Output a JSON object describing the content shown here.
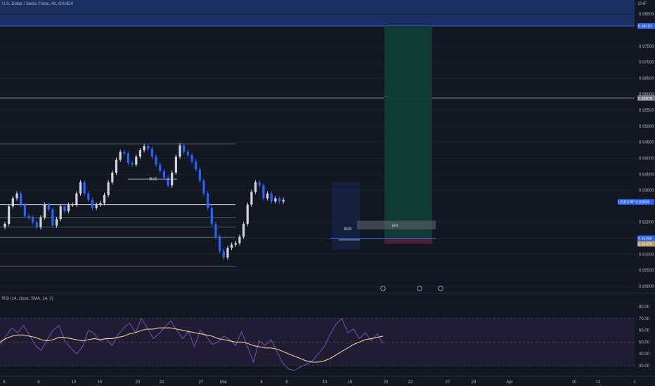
{
  "header": {
    "symbol_title": "U.S. Dollar / Swiss Franc, 4h, OANDA",
    "currency": "CHF"
  },
  "colors": {
    "background": "#131722",
    "bull": "#d1d4dc",
    "bear": "#2962ff",
    "target_zone": "#0f3d35",
    "stop_zone": "#4a1f3a",
    "top_band": "#1e3a7a",
    "rsi_line": "#7e57c2",
    "rsi_ma": "#e8d48a",
    "rsi_band": "#221d35"
  },
  "chart_data": [
    {
      "type": "candlestick",
      "title": "U.S. Dollar / Swiss Franc, 4h, OANDA",
      "ylim": [
        0.8975,
        0.9865
      ],
      "price_ticks": [
        "0.98500",
        "0.97500",
        "0.97000",
        "0.96500",
        "0.96000",
        "0.95500",
        "0.95000",
        "0.94500",
        "0.94000",
        "0.93500",
        "0.93000",
        "0.92000",
        "0.91500",
        "0.91000",
        "0.90500",
        "0.90000"
      ],
      "x_ticks": [
        "6",
        "8",
        "13",
        "15",
        "20",
        "22",
        "27",
        "Mar",
        "6",
        "8",
        "13",
        "15",
        "20",
        "22",
        "27",
        "29",
        "Apr",
        "10",
        "12",
        "1"
      ],
      "price_labels": [
        {
          "text": "0.98131",
          "value": 0.98131,
          "style": "blue"
        },
        {
          "text": "0.95878",
          "value": 0.95878,
          "style": "gray"
        },
        {
          "text": "USDCHF  0.92636",
          "value": 0.92636,
          "style": "blue"
        },
        {
          "text": "0.91500",
          "value": 0.915,
          "style": "blue"
        },
        {
          "text": "0.91329",
          "value": 0.91329,
          "style": "tan"
        }
      ],
      "annotations": [
        "BoS",
        "BoS",
        "IRR"
      ],
      "key_levels": [
        0.95878,
        0.9445,
        0.9255,
        0.9215,
        0.9185,
        0.9153,
        0.9063
      ],
      "close_path": [
        0.9195,
        0.925,
        0.9275,
        0.929,
        0.9255,
        0.922,
        0.9215,
        0.92,
        0.9185,
        0.9215,
        0.9255,
        0.924,
        0.919,
        0.921,
        0.925,
        0.9235,
        0.9255,
        0.9255,
        0.929,
        0.9325,
        0.929,
        0.927,
        0.9245,
        0.9255,
        0.926,
        0.9285,
        0.9325,
        0.9355,
        0.9395,
        0.942,
        0.9415,
        0.9385,
        0.938,
        0.9405,
        0.9425,
        0.9438,
        0.943,
        0.9405,
        0.938,
        0.936,
        0.934,
        0.9315,
        0.9355,
        0.9405,
        0.944,
        0.942,
        0.941,
        0.939,
        0.9365,
        0.933,
        0.929,
        0.9245,
        0.9195,
        0.9155,
        0.911,
        0.909,
        0.912,
        0.913,
        0.9135,
        0.9155,
        0.9195,
        0.9255,
        0.9295,
        0.9325,
        0.9315,
        0.9275,
        0.929,
        0.9265,
        0.9275,
        0.9265,
        0.927
      ],
      "close_x_range": [
        "6",
        "22 Mar"
      ]
    },
    {
      "type": "line",
      "title": "RSI (14, close, SMA, 14, 2)",
      "ylim": [
        27,
        84
      ],
      "y_ticks": [
        "80.00",
        "70.00",
        "60.00",
        "50.00",
        "40.00",
        "30.00"
      ],
      "band": [
        30,
        70
      ],
      "series": [
        {
          "name": "RSI",
          "values": [
            48,
            55,
            62,
            58,
            64,
            56,
            47,
            43,
            52,
            60,
            64,
            51,
            45,
            40,
            46,
            60,
            57,
            51,
            53,
            47,
            56,
            62,
            66,
            58,
            70,
            62,
            53,
            57,
            63,
            68,
            60,
            53,
            59,
            46,
            60,
            55,
            48,
            50,
            55,
            52,
            47,
            59,
            46,
            33,
            51,
            47,
            52,
            42,
            32,
            27,
            26,
            29,
            31,
            34,
            40,
            46,
            56,
            65,
            70,
            58,
            61,
            53,
            58,
            51,
            57,
            49
          ]
        },
        {
          "name": "SMA",
          "values": [
            50,
            53,
            55,
            56,
            56,
            55,
            54,
            52,
            51,
            52,
            54,
            54,
            53,
            52,
            51,
            52,
            53,
            52,
            53,
            53,
            54,
            55,
            57,
            58,
            60,
            61,
            61,
            62,
            62,
            62,
            61,
            60,
            59,
            58,
            57,
            56,
            55,
            53,
            52,
            51,
            50,
            50,
            49,
            47,
            46,
            45,
            45,
            44,
            42,
            40,
            38,
            36,
            34,
            33,
            33,
            34,
            36,
            39,
            42,
            45,
            48,
            50,
            52,
            53,
            54,
            55
          ]
        }
      ]
    }
  ]
}
